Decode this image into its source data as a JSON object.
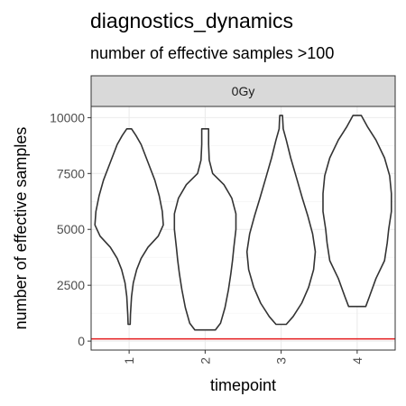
{
  "chart_data": {
    "type": "violin",
    "title": "diagnostics_dynamics",
    "subtitle": "number of effective samples >100",
    "facet_label": "0Gy",
    "xlabel": "timepoint",
    "ylabel": "number of effective samples",
    "categories": [
      "1",
      "2",
      "3",
      "4"
    ],
    "yticks": [
      0,
      2500,
      5000,
      7500,
      10000
    ],
    "ylim": [
      -400,
      10500
    ],
    "grid": true,
    "reference_line": {
      "value": 100,
      "color": "#e41a1c"
    },
    "series": [
      {
        "category": "1",
        "ymin": 750,
        "ymax": 9500,
        "profile": [
          [
            750,
            0.03
          ],
          [
            1200,
            0.04
          ],
          [
            2000,
            0.07
          ],
          [
            2600,
            0.12
          ],
          [
            3200,
            0.22
          ],
          [
            3700,
            0.35
          ],
          [
            4200,
            0.55
          ],
          [
            4700,
            0.85
          ],
          [
            5200,
            1.0
          ],
          [
            5800,
            0.97
          ],
          [
            6500,
            0.88
          ],
          [
            7200,
            0.75
          ],
          [
            8000,
            0.55
          ],
          [
            8800,
            0.35
          ],
          [
            9200,
            0.2
          ],
          [
            9500,
            0.07
          ]
        ]
      },
      {
        "category": "2",
        "ymin": 500,
        "ymax": 9500,
        "profile": [
          [
            500,
            0.3
          ],
          [
            800,
            0.45
          ],
          [
            1500,
            0.58
          ],
          [
            2300,
            0.68
          ],
          [
            3000,
            0.75
          ],
          [
            3600,
            0.8
          ],
          [
            4200,
            0.84
          ],
          [
            5000,
            0.9
          ],
          [
            5700,
            0.9
          ],
          [
            6400,
            0.78
          ],
          [
            7000,
            0.55
          ],
          [
            7500,
            0.22
          ],
          [
            8100,
            0.12
          ],
          [
            8800,
            0.1
          ],
          [
            9500,
            0.1
          ]
        ]
      },
      {
        "category": "3",
        "ymin": 750,
        "ymax": 10100,
        "profile": [
          [
            750,
            0.15
          ],
          [
            1100,
            0.35
          ],
          [
            1700,
            0.6
          ],
          [
            2400,
            0.8
          ],
          [
            3200,
            0.95
          ],
          [
            4000,
            1.0
          ],
          [
            4800,
            0.92
          ],
          [
            5600,
            0.78
          ],
          [
            6400,
            0.62
          ],
          [
            7300,
            0.45
          ],
          [
            8200,
            0.28
          ],
          [
            9000,
            0.15
          ],
          [
            9500,
            0.06
          ],
          [
            9800,
            0.05
          ],
          [
            10100,
            0.04
          ]
        ]
      },
      {
        "category": "4",
        "ymin": 1550,
        "ymax": 10100,
        "profile": [
          [
            1550,
            0.25
          ],
          [
            2000,
            0.36
          ],
          [
            2800,
            0.55
          ],
          [
            3600,
            0.8
          ],
          [
            4400,
            0.88
          ],
          [
            5000,
            0.92
          ],
          [
            5800,
            1.0
          ],
          [
            6600,
            1.0
          ],
          [
            7400,
            0.95
          ],
          [
            8200,
            0.8
          ],
          [
            9000,
            0.55
          ],
          [
            9600,
            0.3
          ],
          [
            10100,
            0.12
          ]
        ]
      }
    ]
  }
}
